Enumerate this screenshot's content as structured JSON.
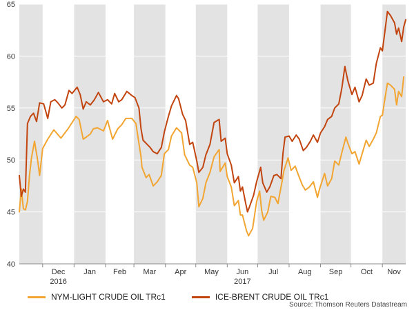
{
  "chart_data": {
    "type": "line",
    "title": "",
    "xlabel": "",
    "ylabel": "",
    "ylim": [
      40,
      65
    ],
    "yticks": [
      40,
      45,
      50,
      55,
      60,
      65
    ],
    "x_start": "2016-11-08",
    "x_end": "2017-11-24",
    "month_labels": [
      "Dec",
      "Jan",
      "Feb",
      "Mar",
      "Apr",
      "May",
      "Jun",
      "Jul",
      "Aug",
      "Sep",
      "Oct",
      "Nov"
    ],
    "year_labels": [
      "2016",
      "2017"
    ],
    "colors": {
      "nym": "#F2A531",
      "brent": "#C2440E",
      "shade": "#E3E3E3"
    },
    "series": [
      {
        "name": "NYM-LIGHT CRUDE OIL TRc1",
        "key": "nym",
        "points": [
          [
            "2016-11-08",
            45.0
          ],
          [
            "2016-11-10",
            47.2
          ],
          [
            "2016-11-12",
            45.3
          ],
          [
            "2016-11-14",
            45.2
          ],
          [
            "2016-11-16",
            46.0
          ],
          [
            "2016-11-18",
            48.5
          ],
          [
            "2016-11-20",
            50.2
          ],
          [
            "2016-11-23",
            51.8
          ],
          [
            "2016-11-26",
            50.0
          ],
          [
            "2016-11-28",
            48.5
          ],
          [
            "2016-12-01",
            51.1
          ],
          [
            "2016-12-06",
            52.0
          ],
          [
            "2016-12-12",
            52.9
          ],
          [
            "2016-12-19",
            52.1
          ],
          [
            "2016-12-26",
            53.0
          ],
          [
            "2017-01-03",
            54.2
          ],
          [
            "2017-01-06",
            53.9
          ],
          [
            "2017-01-10",
            52.0
          ],
          [
            "2017-01-13",
            52.2
          ],
          [
            "2017-01-17",
            52.5
          ],
          [
            "2017-01-20",
            53.0
          ],
          [
            "2017-01-24",
            53.1
          ],
          [
            "2017-01-30",
            52.8
          ],
          [
            "2017-02-03",
            53.8
          ],
          [
            "2017-02-08",
            52.0
          ],
          [
            "2017-02-13",
            53.0
          ],
          [
            "2017-02-17",
            53.4
          ],
          [
            "2017-02-21",
            54.0
          ],
          [
            "2017-02-27",
            54.0
          ],
          [
            "2017-03-03",
            53.5
          ],
          [
            "2017-03-08",
            50.3
          ],
          [
            "2017-03-09",
            49.3
          ],
          [
            "2017-03-13",
            48.3
          ],
          [
            "2017-03-16",
            48.6
          ],
          [
            "2017-03-20",
            47.5
          ],
          [
            "2017-03-24",
            47.9
          ],
          [
            "2017-03-28",
            48.5
          ],
          [
            "2017-03-31",
            50.6
          ],
          [
            "2017-04-04",
            51.0
          ],
          [
            "2017-04-07",
            52.3
          ],
          [
            "2017-04-12",
            53.1
          ],
          [
            "2017-04-17",
            52.6
          ],
          [
            "2017-04-20",
            50.5
          ],
          [
            "2017-04-25",
            49.5
          ],
          [
            "2017-04-28",
            49.3
          ],
          [
            "2017-05-02",
            47.8
          ],
          [
            "2017-05-04",
            45.5
          ],
          [
            "2017-05-08",
            46.3
          ],
          [
            "2017-05-11",
            47.8
          ],
          [
            "2017-05-15",
            48.8
          ],
          [
            "2017-05-19",
            50.3
          ],
          [
            "2017-05-24",
            51.0
          ],
          [
            "2017-05-25",
            48.9
          ],
          [
            "2017-05-30",
            49.7
          ],
          [
            "2017-06-01",
            48.4
          ],
          [
            "2017-06-05",
            47.4
          ],
          [
            "2017-06-08",
            45.6
          ],
          [
            "2017-06-12",
            46.1
          ],
          [
            "2017-06-14",
            44.7
          ],
          [
            "2017-06-16",
            44.7
          ],
          [
            "2017-06-20",
            43.2
          ],
          [
            "2017-06-22",
            42.7
          ],
          [
            "2017-06-26",
            43.4
          ],
          [
            "2017-06-28",
            44.7
          ],
          [
            "2017-06-30",
            46.0
          ],
          [
            "2017-07-03",
            47.0
          ],
          [
            "2017-07-05",
            45.1
          ],
          [
            "2017-07-07",
            44.2
          ],
          [
            "2017-07-11",
            45.0
          ],
          [
            "2017-07-14",
            46.5
          ],
          [
            "2017-07-18",
            46.4
          ],
          [
            "2017-07-21",
            45.8
          ],
          [
            "2017-07-25",
            47.9
          ],
          [
            "2017-07-27",
            49.0
          ],
          [
            "2017-07-31",
            50.2
          ],
          [
            "2017-08-03",
            49.0
          ],
          [
            "2017-08-07",
            49.4
          ],
          [
            "2017-08-10",
            48.6
          ],
          [
            "2017-08-14",
            47.6
          ],
          [
            "2017-08-17",
            47.1
          ],
          [
            "2017-08-21",
            47.4
          ],
          [
            "2017-08-25",
            47.9
          ],
          [
            "2017-08-29",
            46.4
          ],
          [
            "2017-08-31",
            47.2
          ],
          [
            "2017-09-05",
            48.7
          ],
          [
            "2017-09-08",
            47.5
          ],
          [
            "2017-09-12",
            48.2
          ],
          [
            "2017-09-15",
            49.9
          ],
          [
            "2017-09-19",
            49.5
          ],
          [
            "2017-09-22",
            50.7
          ],
          [
            "2017-09-26",
            52.2
          ],
          [
            "2017-09-28",
            51.6
          ],
          [
            "2017-10-02",
            50.6
          ],
          [
            "2017-10-05",
            50.8
          ],
          [
            "2017-10-09",
            49.6
          ],
          [
            "2017-10-12",
            50.6
          ],
          [
            "2017-10-16",
            51.9
          ],
          [
            "2017-10-19",
            51.3
          ],
          [
            "2017-10-23",
            52.0
          ],
          [
            "2017-10-26",
            52.6
          ],
          [
            "2017-10-30",
            54.2
          ],
          [
            "2017-11-01",
            54.3
          ],
          [
            "2017-11-03",
            55.6
          ],
          [
            "2017-11-06",
            57.4
          ],
          [
            "2017-11-09",
            57.2
          ],
          [
            "2017-11-13",
            56.8
          ],
          [
            "2017-11-15",
            55.3
          ],
          [
            "2017-11-17",
            56.6
          ],
          [
            "2017-11-20",
            56.1
          ],
          [
            "2017-11-22",
            58.0
          ]
        ]
      },
      {
        "name": "ICE-BRENT CRUDE OIL TRc1",
        "key": "brent",
        "points": [
          [
            "2016-11-08",
            48.5
          ],
          [
            "2016-11-10",
            46.5
          ],
          [
            "2016-11-12",
            47.2
          ],
          [
            "2016-11-14",
            46.9
          ],
          [
            "2016-11-16",
            53.5
          ],
          [
            "2016-11-19",
            54.2
          ],
          [
            "2016-11-22",
            54.5
          ],
          [
            "2016-11-25",
            53.7
          ],
          [
            "2016-11-28",
            55.5
          ],
          [
            "2016-12-02",
            55.4
          ],
          [
            "2016-12-06",
            54.0
          ],
          [
            "2016-12-09",
            55.6
          ],
          [
            "2016-12-13",
            55.8
          ],
          [
            "2016-12-16",
            55.5
          ],
          [
            "2016-12-20",
            55.0
          ],
          [
            "2016-12-23",
            55.3
          ],
          [
            "2016-12-27",
            56.7
          ],
          [
            "2016-12-30",
            56.4
          ],
          [
            "2017-01-04",
            57.0
          ],
          [
            "2017-01-07",
            56.3
          ],
          [
            "2017-01-10",
            54.9
          ],
          [
            "2017-01-13",
            55.6
          ],
          [
            "2017-01-17",
            55.3
          ],
          [
            "2017-01-21",
            55.8
          ],
          [
            "2017-01-25",
            56.5
          ],
          [
            "2017-01-30",
            55.6
          ],
          [
            "2017-02-03",
            55.8
          ],
          [
            "2017-02-07",
            55.4
          ],
          [
            "2017-02-10",
            56.4
          ],
          [
            "2017-02-14",
            55.6
          ],
          [
            "2017-02-17",
            55.8
          ],
          [
            "2017-02-22",
            56.6
          ],
          [
            "2017-02-27",
            56.2
          ],
          [
            "2017-03-02",
            56.0
          ],
          [
            "2017-03-06",
            55.0
          ],
          [
            "2017-03-08",
            53.0
          ],
          [
            "2017-03-10",
            51.9
          ],
          [
            "2017-03-14",
            51.5
          ],
          [
            "2017-03-17",
            51.2
          ],
          [
            "2017-03-20",
            50.8
          ],
          [
            "2017-03-24",
            50.6
          ],
          [
            "2017-03-28",
            51.2
          ],
          [
            "2017-03-31",
            52.7
          ],
          [
            "2017-04-04",
            54.2
          ],
          [
            "2017-04-07",
            55.2
          ],
          [
            "2017-04-12",
            56.2
          ],
          [
            "2017-04-14",
            55.9
          ],
          [
            "2017-04-18",
            54.4
          ],
          [
            "2017-04-21",
            53.8
          ],
          [
            "2017-04-25",
            51.5
          ],
          [
            "2017-04-28",
            51.7
          ],
          [
            "2017-05-02",
            49.9
          ],
          [
            "2017-05-04",
            48.8
          ],
          [
            "2017-05-08",
            49.3
          ],
          [
            "2017-05-11",
            50.5
          ],
          [
            "2017-05-15",
            51.5
          ],
          [
            "2017-05-19",
            53.6
          ],
          [
            "2017-05-24",
            53.9
          ],
          [
            "2017-05-26",
            51.8
          ],
          [
            "2017-05-30",
            52.1
          ],
          [
            "2017-06-01",
            50.6
          ],
          [
            "2017-06-05",
            49.5
          ],
          [
            "2017-06-08",
            47.8
          ],
          [
            "2017-06-12",
            48.4
          ],
          [
            "2017-06-14",
            47.0
          ],
          [
            "2017-06-16",
            47.4
          ],
          [
            "2017-06-19",
            45.9
          ],
          [
            "2017-06-21",
            45.0
          ],
          [
            "2017-06-23",
            45.5
          ],
          [
            "2017-06-27",
            46.6
          ],
          [
            "2017-06-30",
            47.9
          ],
          [
            "2017-07-04",
            49.3
          ],
          [
            "2017-07-06",
            47.8
          ],
          [
            "2017-07-10",
            46.9
          ],
          [
            "2017-07-13",
            47.4
          ],
          [
            "2017-07-17",
            48.5
          ],
          [
            "2017-07-20",
            48.6
          ],
          [
            "2017-07-24",
            48.2
          ],
          [
            "2017-07-26",
            50.7
          ],
          [
            "2017-07-28",
            52.2
          ],
          [
            "2017-08-01",
            52.3
          ],
          [
            "2017-08-04",
            51.8
          ],
          [
            "2017-08-08",
            52.4
          ],
          [
            "2017-08-11",
            52.0
          ],
          [
            "2017-08-15",
            50.9
          ],
          [
            "2017-08-18",
            51.2
          ],
          [
            "2017-08-22",
            51.8
          ],
          [
            "2017-08-25",
            52.4
          ],
          [
            "2017-08-29",
            51.7
          ],
          [
            "2017-09-01",
            52.6
          ],
          [
            "2017-09-05",
            53.2
          ],
          [
            "2017-09-08",
            53.9
          ],
          [
            "2017-09-12",
            54.2
          ],
          [
            "2017-09-15",
            55.0
          ],
          [
            "2017-09-19",
            55.4
          ],
          [
            "2017-09-22",
            56.9
          ],
          [
            "2017-09-25",
            59.0
          ],
          [
            "2017-09-28",
            57.6
          ],
          [
            "2017-10-02",
            56.3
          ],
          [
            "2017-10-05",
            57.0
          ],
          [
            "2017-10-09",
            55.6
          ],
          [
            "2017-10-12",
            56.2
          ],
          [
            "2017-10-16",
            57.8
          ],
          [
            "2017-10-19",
            57.2
          ],
          [
            "2017-10-23",
            57.4
          ],
          [
            "2017-10-26",
            59.3
          ],
          [
            "2017-10-30",
            60.8
          ],
          [
            "2017-11-01",
            60.5
          ],
          [
            "2017-11-03",
            62.0
          ],
          [
            "2017-11-06",
            64.3
          ],
          [
            "2017-11-09",
            63.9
          ],
          [
            "2017-11-13",
            63.2
          ],
          [
            "2017-11-15",
            62.1
          ],
          [
            "2017-11-17",
            62.7
          ],
          [
            "2017-11-20",
            61.4
          ],
          [
            "2017-11-22",
            62.8
          ],
          [
            "2017-11-24",
            63.5
          ]
        ]
      }
    ],
    "source": "Source: Thomson Reuters Datastream"
  }
}
